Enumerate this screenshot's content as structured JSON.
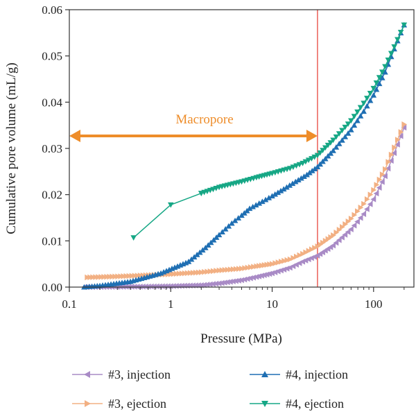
{
  "chart_data": {
    "type": "line",
    "xlabel": "Pressure (MPa)",
    "ylabel": "Cumulative pore volume (mL/g)",
    "x_scale": "log",
    "xlim": [
      0.1,
      250
    ],
    "ylim": [
      0,
      0.06
    ],
    "x_ticks": [
      "0.1",
      "1",
      "10",
      "100"
    ],
    "y_ticks": [
      "0.00",
      "0.01",
      "0.02",
      "0.03",
      "0.04",
      "0.05",
      "0.06"
    ],
    "grid": false,
    "legend_position": "bottom",
    "vertical_line": {
      "x": 28,
      "color": "#e8463c"
    },
    "annotation": {
      "text": "Macropore",
      "from_x": 0.1,
      "to_x": 28,
      "y": 0.0327,
      "color": "#ee8d2a"
    },
    "series": [
      {
        "name": "#3, injection",
        "color": "#a98bc6",
        "marker": "triangle-left",
        "points": [
          [
            0.14,
            0
          ],
          [
            0.5,
            0.0001
          ],
          [
            1,
            0.0002
          ],
          [
            2,
            0.0004
          ],
          [
            3,
            0.0008
          ],
          [
            5,
            0.0015
          ],
          [
            7,
            0.0022
          ],
          [
            10,
            0.003
          ],
          [
            15,
            0.0042
          ],
          [
            20,
            0.0055
          ],
          [
            28,
            0.0068
          ],
          [
            40,
            0.009
          ],
          [
            60,
            0.0125
          ],
          [
            80,
            0.0158
          ],
          [
            100,
            0.019
          ],
          [
            130,
            0.024
          ],
          [
            160,
            0.029
          ],
          [
            200,
            0.0345
          ]
        ]
      },
      {
        "name": "#3, ejection",
        "color": "#f2b083",
        "marker": "triangle-right",
        "points": [
          [
            0.15,
            0.0021
          ],
          [
            0.3,
            0.0023
          ],
          [
            0.5,
            0.0025
          ],
          [
            1,
            0.0028
          ],
          [
            2,
            0.0032
          ],
          [
            3,
            0.0036
          ],
          [
            5,
            0.004
          ],
          [
            7,
            0.0045
          ],
          [
            10,
            0.005
          ],
          [
            15,
            0.006
          ],
          [
            20,
            0.0072
          ],
          [
            28,
            0.0088
          ],
          [
            40,
            0.0112
          ],
          [
            60,
            0.0148
          ],
          [
            80,
            0.018
          ],
          [
            100,
            0.021
          ],
          [
            130,
            0.0255
          ],
          [
            160,
            0.0302
          ],
          [
            200,
            0.0352
          ]
        ]
      },
      {
        "name": "#4, injection",
        "color": "#1f6fb3",
        "marker": "triangle-up",
        "points": [
          [
            0.14,
            0
          ],
          [
            0.2,
            0.0003
          ],
          [
            0.4,
            0.0012
          ],
          [
            0.8,
            0.003
          ],
          [
            1.5,
            0.0055
          ],
          [
            2.2,
            0.0085
          ],
          [
            3,
            0.0113
          ],
          [
            4,
            0.0138
          ],
          [
            5,
            0.0155
          ],
          [
            6,
            0.017
          ],
          [
            8,
            0.0185
          ],
          [
            10,
            0.0197
          ],
          [
            13,
            0.0212
          ],
          [
            17,
            0.0228
          ],
          [
            22,
            0.0243
          ],
          [
            28,
            0.026
          ],
          [
            40,
            0.0295
          ],
          [
            60,
            0.034
          ],
          [
            80,
            0.038
          ],
          [
            100,
            0.0415
          ],
          [
            130,
            0.0465
          ],
          [
            160,
            0.0515
          ],
          [
            200,
            0.0567
          ]
        ]
      },
      {
        "name": "#4, ejection",
        "color": "#16a785",
        "marker": "triangle-down",
        "points": [
          [
            0.43,
            0.0107
          ],
          [
            1,
            0.0178
          ],
          [
            2,
            0.0203
          ],
          [
            3,
            0.0216
          ],
          [
            5,
            0.0228
          ],
          [
            7,
            0.0237
          ],
          [
            10,
            0.0246
          ],
          [
            15,
            0.0257
          ],
          [
            20,
            0.0268
          ],
          [
            28,
            0.0285
          ],
          [
            40,
            0.0318
          ],
          [
            60,
            0.036
          ],
          [
            80,
            0.0398
          ],
          [
            100,
            0.043
          ],
          [
            130,
            0.0477
          ],
          [
            160,
            0.052
          ],
          [
            200,
            0.0567
          ]
        ]
      }
    ]
  }
}
